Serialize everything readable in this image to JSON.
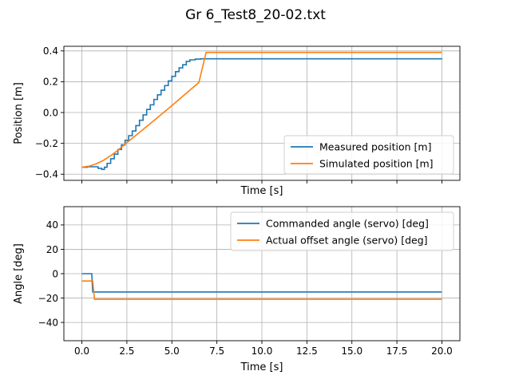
{
  "figure": {
    "title": "Gr 6_Test8_20-02.txt"
  },
  "colors": {
    "blue": "#1f77b4",
    "orange": "#ff7f0e",
    "grid": "#b0b0b0",
    "axis": "#000000"
  },
  "chart_data": [
    {
      "type": "line",
      "title": "",
      "xlabel": "Time [s]",
      "ylabel": "Position [m]",
      "xlim": [
        -1.0,
        21.0
      ],
      "ylim": [
        -0.44,
        0.43
      ],
      "x_ticks": [
        0.0,
        2.5,
        5.0,
        7.5,
        10.0,
        12.5,
        15.0,
        17.5,
        20.0
      ],
      "x_tick_labels_visible": false,
      "y_ticks": [
        -0.4,
        -0.2,
        0.0,
        0.2,
        0.4
      ],
      "y_tick_labels": [
        "−0.4",
        "−0.2",
        "0.0",
        "0.2",
        "0.4"
      ],
      "grid": true,
      "legend_position": "lower-right",
      "series": [
        {
          "name": "Measured position [m]",
          "color": "#1f77b4",
          "step": true,
          "points": [
            [
              0.0,
              -0.355
            ],
            [
              0.3,
              -0.352
            ],
            [
              0.6,
              -0.352
            ],
            [
              0.9,
              -0.362
            ],
            [
              1.1,
              -0.369
            ],
            [
              1.25,
              -0.355
            ],
            [
              1.4,
              -0.33
            ],
            [
              1.6,
              -0.3
            ],
            [
              1.8,
              -0.27
            ],
            [
              2.0,
              -0.24
            ],
            [
              2.2,
              -0.21
            ],
            [
              2.4,
              -0.18
            ],
            [
              2.6,
              -0.15
            ],
            [
              2.8,
              -0.12
            ],
            [
              3.0,
              -0.085
            ],
            [
              3.2,
              -0.05
            ],
            [
              3.4,
              -0.015
            ],
            [
              3.6,
              0.02
            ],
            [
              3.8,
              0.05
            ],
            [
              4.0,
              0.085
            ],
            [
              4.2,
              0.115
            ],
            [
              4.4,
              0.145
            ],
            [
              4.6,
              0.175
            ],
            [
              4.8,
              0.205
            ],
            [
              5.0,
              0.235
            ],
            [
              5.2,
              0.265
            ],
            [
              5.4,
              0.29
            ],
            [
              5.6,
              0.31
            ],
            [
              5.8,
              0.332
            ],
            [
              6.0,
              0.342
            ],
            [
              6.3,
              0.347
            ],
            [
              6.6,
              0.349
            ],
            [
              8.0,
              0.349
            ],
            [
              12.5,
              0.349
            ],
            [
              20.0,
              0.35
            ]
          ]
        },
        {
          "name": "Simulated position [m]",
          "color": "#ff7f0e",
          "step": false,
          "points": [
            [
              0.0,
              -0.355
            ],
            [
              0.4,
              -0.348
            ],
            [
              0.8,
              -0.333
            ],
            [
              1.2,
              -0.31
            ],
            [
              1.6,
              -0.28
            ],
            [
              2.0,
              -0.245
            ],
            [
              2.5,
              -0.195
            ],
            [
              3.0,
              -0.148
            ],
            [
              4.0,
              -0.052
            ],
            [
              5.0,
              0.045
            ],
            [
              6.0,
              0.145
            ],
            [
              6.5,
              0.195
            ],
            [
              6.9,
              0.39
            ],
            [
              8.0,
              0.39
            ],
            [
              20.0,
              0.39
            ]
          ]
        }
      ]
    },
    {
      "type": "line",
      "title": "",
      "xlabel": "Time [s]",
      "ylabel": "Angle [deg]",
      "xlim": [
        -1.0,
        21.0
      ],
      "ylim": [
        -55,
        55
      ],
      "x_ticks": [
        0.0,
        2.5,
        5.0,
        7.5,
        10.0,
        12.5,
        15.0,
        17.5,
        20.0
      ],
      "x_tick_labels": [
        "0.0",
        "2.5",
        "5.0",
        "7.5",
        "10.0",
        "12.5",
        "15.0",
        "17.5",
        "20.0"
      ],
      "y_ticks": [
        -40,
        -20,
        0,
        20,
        40
      ],
      "y_tick_labels": [
        "−40",
        "−20",
        "0",
        "20",
        "40"
      ],
      "grid": true,
      "legend_position": "top-right",
      "series": [
        {
          "name": "Commanded angle (servo) [deg]",
          "color": "#1f77b4",
          "step": false,
          "points": [
            [
              0.0,
              0.0
            ],
            [
              0.55,
              0.0
            ],
            [
              0.6,
              -15.0
            ],
            [
              20.0,
              -15.0
            ]
          ]
        },
        {
          "name": "Actual offset angle (servo) [deg]",
          "color": "#ff7f0e",
          "step": false,
          "points": [
            [
              0.0,
              -6.0
            ],
            [
              0.6,
              -6.0
            ],
            [
              0.7,
              -21.0
            ],
            [
              20.0,
              -21.0
            ]
          ]
        }
      ]
    }
  ]
}
